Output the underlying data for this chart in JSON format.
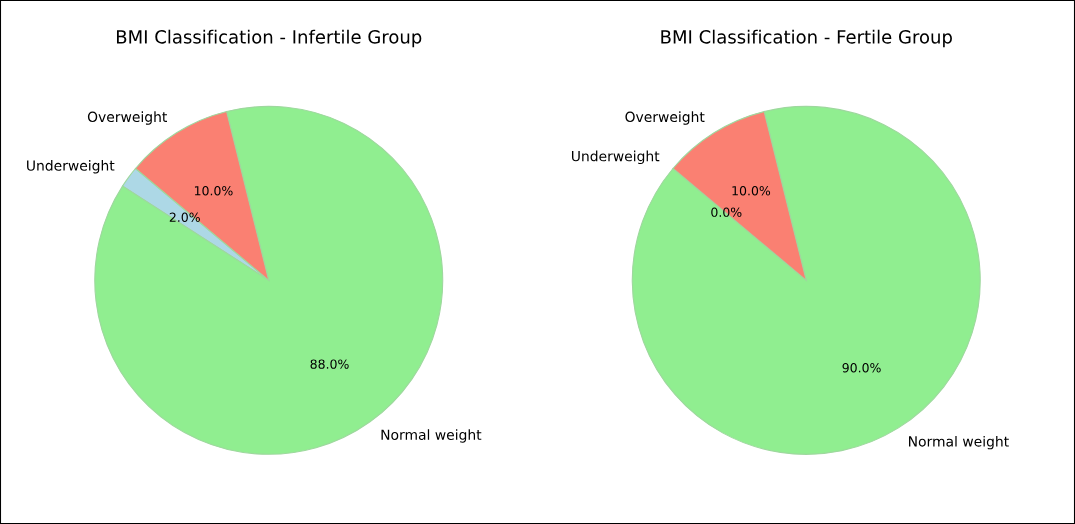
{
  "chart_data": [
    {
      "type": "pie",
      "title": "BMI Classification - Infertile Group",
      "categories": [
        "Underweight",
        "Normal weight",
        "Overweight"
      ],
      "values": [
        2.0,
        88.0,
        10.0
      ],
      "value_labels": [
        "2.0%",
        "88.0%",
        "10.0%"
      ],
      "colors": [
        "#add8e6",
        "#90ee90",
        "#fa8072"
      ]
    },
    {
      "type": "pie",
      "title": "BMI Classification - Fertile Group",
      "categories": [
        "Underweight",
        "Normal weight",
        "Overweight"
      ],
      "values": [
        0.0,
        90.0,
        10.0
      ],
      "value_labels": [
        "0.0%",
        "90.0%",
        "10.0%"
      ],
      "colors": [
        "#add8e6",
        "#90ee90",
        "#fa8072"
      ]
    }
  ]
}
